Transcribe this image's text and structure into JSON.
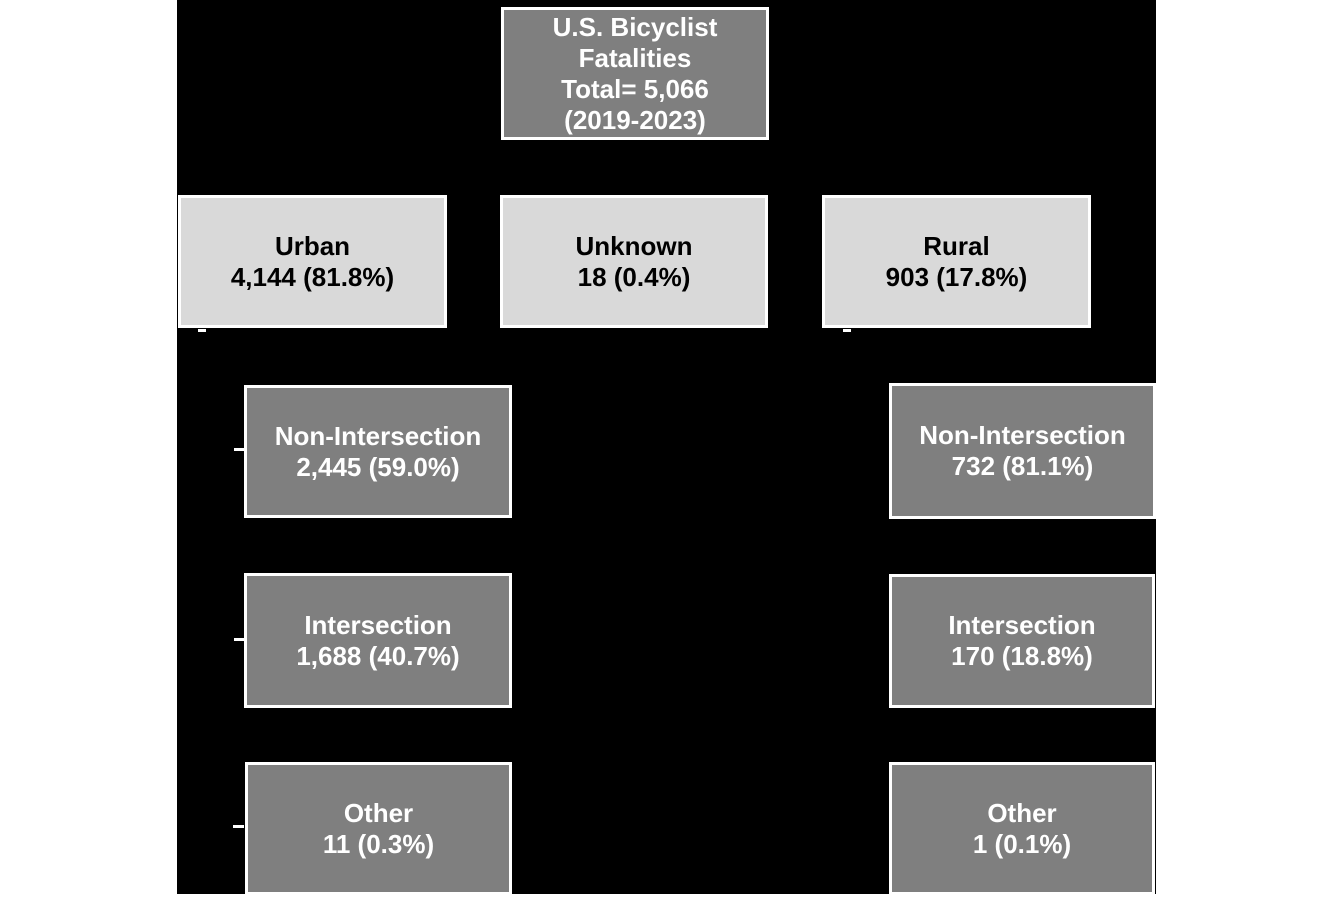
{
  "colors": {
    "page_bg": "#FFFFFF",
    "canvas_bg": "#000000",
    "node_dark": "#7F7F7F",
    "node_light": "#D9D9D9",
    "node_border": "#FFFFFF",
    "text_on_dark": "#FFFFFF",
    "text_on_light": "#000000"
  },
  "diagram": {
    "root": {
      "line1": "U.S. Bicyclist",
      "line2": "Fatalities",
      "line3": "Total= 5,066",
      "line4": "(2019-2023)"
    },
    "level2": {
      "urban": {
        "label": "Urban",
        "value": "4,144 (81.8%)"
      },
      "unknown": {
        "label": "Unknown",
        "value": "18 (0.4%)"
      },
      "rural": {
        "label": "Rural",
        "value": "903 (17.8%)"
      }
    },
    "urban_children": {
      "non_intersection": {
        "label": "Non-Intersection",
        "value": "2,445 (59.0%)"
      },
      "intersection": {
        "label": "Intersection",
        "value": "1,688 (40.7%)"
      },
      "other": {
        "label": "Other",
        "value": "11 (0.3%)"
      }
    },
    "rural_children": {
      "non_intersection": {
        "label": "Non-Intersection",
        "value": "732 (81.1%)"
      },
      "intersection": {
        "label": "Intersection",
        "value": "170 (18.8%)"
      },
      "other": {
        "label": "Other",
        "value": "1 (0.1%)"
      }
    }
  }
}
